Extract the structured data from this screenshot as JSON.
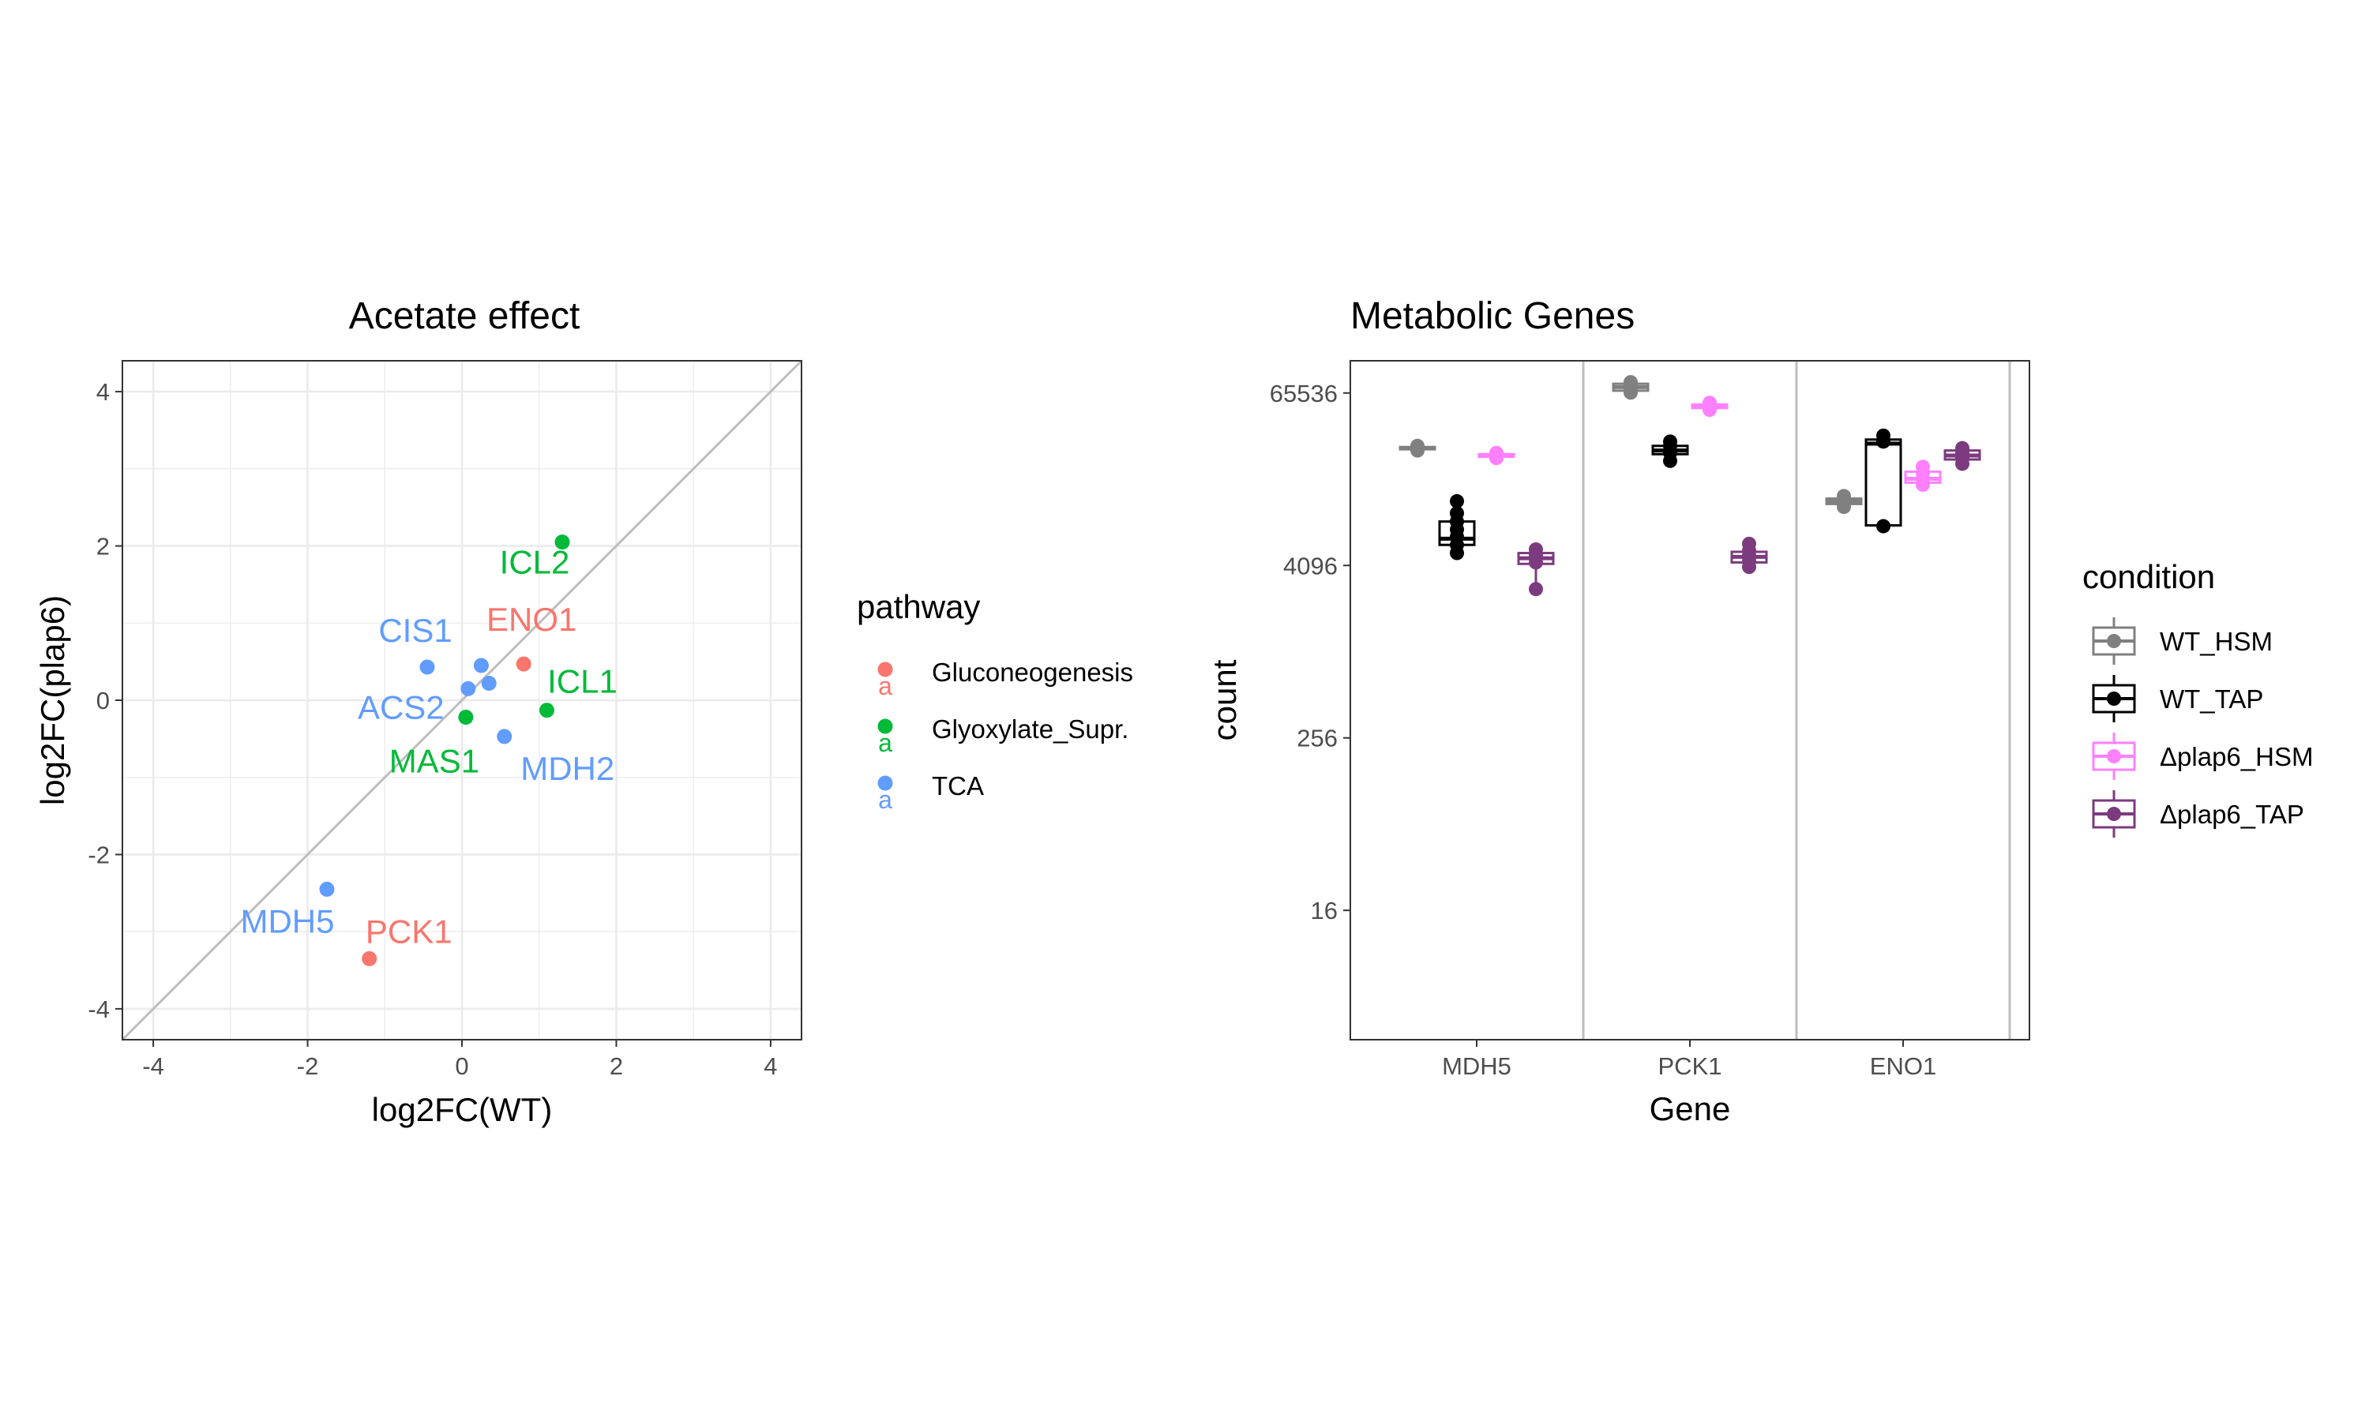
{
  "colors": {
    "Gluconeogenesis": "#F8766D",
    "Glyoxylate_Supr.": "#00BA38",
    "TCA": "#619CFF",
    "WT_HSM": "#808080",
    "WT_TAP": "#000000",
    "Δplap6_HSM": "#FF80FF",
    "Δplap6_TAP": "#7B3B7E",
    "grid": "#ebebeb",
    "panel_border": "#333333",
    "diagonal": "#bebebe"
  },
  "chart_data": [
    {
      "type": "scatter",
      "title": "Acetate effect",
      "xlabel": "log2FC(WT)",
      "ylabel": "log2FC(plap6)",
      "xlim": [
        -4.4,
        4.4
      ],
      "ylim": [
        -4.4,
        4.4
      ],
      "x_ticks": [
        -4,
        -2,
        0,
        2,
        4
      ],
      "y_ticks": [
        -4,
        -2,
        0,
        2,
        4
      ],
      "x_tick_labels": [
        "-4",
        "-2",
        "0",
        "2",
        "4"
      ],
      "y_tick_labels": [
        "-4",
        "-2",
        "0",
        "2",
        "4"
      ],
      "grid": true,
      "reference_line": "y = x",
      "legend": {
        "title": "pathway",
        "entries": [
          "Gluconeogenesis",
          "Glyoxylate_Supr.",
          "TCA"
        ],
        "key_glyph": "a"
      },
      "points": [
        {
          "x": 1.3,
          "y": 2.05,
          "pathway": "Glyoxylate_Supr.",
          "label": "ICL2"
        },
        {
          "x": 0.8,
          "y": 0.47,
          "pathway": "Gluconeogenesis",
          "label": "ENO1"
        },
        {
          "x": -0.45,
          "y": 0.43,
          "pathway": "TCA",
          "label": "CIS1"
        },
        {
          "x": 0.25,
          "y": 0.45,
          "pathway": "TCA",
          "label": ""
        },
        {
          "x": 0.35,
          "y": 0.22,
          "pathway": "TCA",
          "label": ""
        },
        {
          "x": 0.08,
          "y": 0.15,
          "pathway": "TCA",
          "label": "ACS2"
        },
        {
          "x": 1.1,
          "y": -0.13,
          "pathway": "Glyoxylate_Supr.",
          "label": "ICL1"
        },
        {
          "x": 0.05,
          "y": -0.22,
          "pathway": "Glyoxylate_Supr.",
          "label": "MAS1"
        },
        {
          "x": 0.55,
          "y": -0.47,
          "pathway": "TCA",
          "label": "MDH2"
        },
        {
          "x": -1.75,
          "y": -2.45,
          "pathway": "TCA",
          "label": "MDH5"
        },
        {
          "x": -1.2,
          "y": -3.35,
          "pathway": "Gluconeogenesis",
          "label": "PCK1"
        }
      ]
    },
    {
      "type": "box",
      "title": "Metabolic Genes",
      "xlabel": "Gene",
      "ylabel": "count",
      "y_scale": "log2",
      "ylim": [
        2,
        110000
      ],
      "y_ticks": [
        16,
        256,
        4096,
        65536
      ],
      "y_tick_labels": [
        "16",
        "256",
        "4096",
        "65536"
      ],
      "categories": [
        "MDH5",
        "PCK1",
        "ENO1"
      ],
      "grid": false,
      "legend": {
        "title": "condition",
        "entries": [
          "WT_HSM",
          "WT_TAP",
          "Δplap6_HSM",
          "Δplap6_TAP"
        ]
      },
      "series": [
        {
          "name": "WT_HSM",
          "groups": [
            {
              "gene": "MDH5",
              "points": [
                26000,
                27000,
                28000
              ],
              "q1": 26500,
              "median": 27000,
              "q3": 27500
            },
            {
              "gene": "PCK1",
              "points": [
                66000,
                70000,
                74000,
                78000
              ],
              "q1": 68000,
              "median": 72000,
              "q3": 76000
            },
            {
              "gene": "ENO1",
              "points": [
                10500,
                11500,
                12500
              ],
              "q1": 11000,
              "median": 11500,
              "q3": 12000
            }
          ]
        },
        {
          "name": "WT_TAP",
          "groups": [
            {
              "gene": "MDH5",
              "points": [
                5000,
                5700,
                6500,
                7300,
                8300,
                9500,
                11500
              ],
              "q1": 5700,
              "median": 6300,
              "q3": 8300
            },
            {
              "gene": "PCK1",
              "points": [
                22000,
                25000,
                28000,
                30000
              ],
              "q1": 24500,
              "median": 26000,
              "q3": 28000
            },
            {
              "gene": "ENO1",
              "points": [
                7700,
                30000,
                33000
              ],
              "q1": 7800,
              "median": 29000,
              "q3": 31000
            }
          ]
        },
        {
          "name": "Δplap6_HSM",
          "groups": [
            {
              "gene": "MDH5",
              "points": [
                23000,
                24000,
                25000
              ],
              "q1": 23500,
              "median": 24000,
              "q3": 24500
            },
            {
              "gene": "PCK1",
              "points": [
                50000,
                53000,
                56000
              ],
              "q1": 51500,
              "median": 53000,
              "q3": 54500
            },
            {
              "gene": "ENO1",
              "points": [
                15000,
                16500,
                18000,
                20000
              ],
              "q1": 15500,
              "median": 16500,
              "q3": 18500
            }
          ]
        },
        {
          "name": "Δplap6_TAP",
          "groups": [
            {
              "gene": "MDH5",
              "points": [
                2800,
                4300,
                4800,
                5300
              ],
              "q1": 4200,
              "median": 4600,
              "q3": 5000
            },
            {
              "gene": "PCK1",
              "points": [
                4000,
                4400,
                4800,
                5200,
                5800
              ],
              "q1": 4300,
              "median": 4700,
              "q3": 5100
            },
            {
              "gene": "ENO1",
              "points": [
                21000,
                23000,
                25000,
                27000
              ],
              "q1": 22500,
              "median": 24000,
              "q3": 26000
            }
          ]
        }
      ]
    }
  ]
}
